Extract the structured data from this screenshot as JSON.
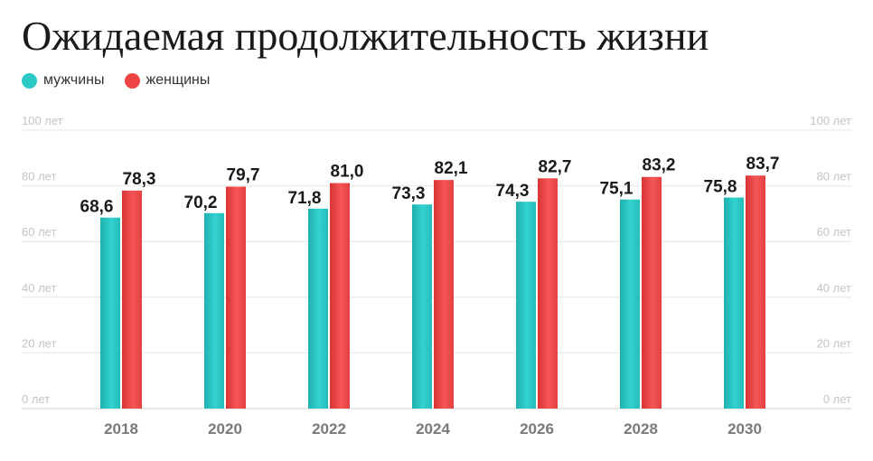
{
  "title": "Ожидаемая продолжительность жизни",
  "legend": {
    "men": "мужчины",
    "women": "женщины"
  },
  "colors": {
    "men": "#2cc8c6",
    "women": "#ee4444"
  },
  "chart_data": {
    "type": "bar",
    "title": "Ожидаемая продолжительность жизни",
    "categories": [
      "2018",
      "2020",
      "2022",
      "2024",
      "2026",
      "2028",
      "2030"
    ],
    "series": [
      {
        "name": "мужчины",
        "values": [
          68.6,
          70.2,
          71.8,
          73.3,
          74.3,
          75.1,
          75.8
        ],
        "labels": [
          "68,6",
          "70,2",
          "71,8",
          "73,3",
          "74,3",
          "75,1",
          "75,8"
        ]
      },
      {
        "name": "женщины",
        "values": [
          78.3,
          79.7,
          81.0,
          82.1,
          82.7,
          83.2,
          83.7
        ],
        "labels": [
          "78,3",
          "79,7",
          "81,0",
          "82,1",
          "82,7",
          "83,2",
          "83,7"
        ]
      }
    ],
    "ylim": [
      0,
      100
    ],
    "yticks": [
      0,
      20,
      40,
      60,
      80,
      100
    ],
    "ytick_labels": [
      "0 лет",
      "20 лет",
      "40 лет",
      "60 лет",
      "80 лет",
      "100 лет"
    ],
    "grid": true,
    "legend_position": "top-left",
    "xlabel": "",
    "ylabel": ""
  }
}
